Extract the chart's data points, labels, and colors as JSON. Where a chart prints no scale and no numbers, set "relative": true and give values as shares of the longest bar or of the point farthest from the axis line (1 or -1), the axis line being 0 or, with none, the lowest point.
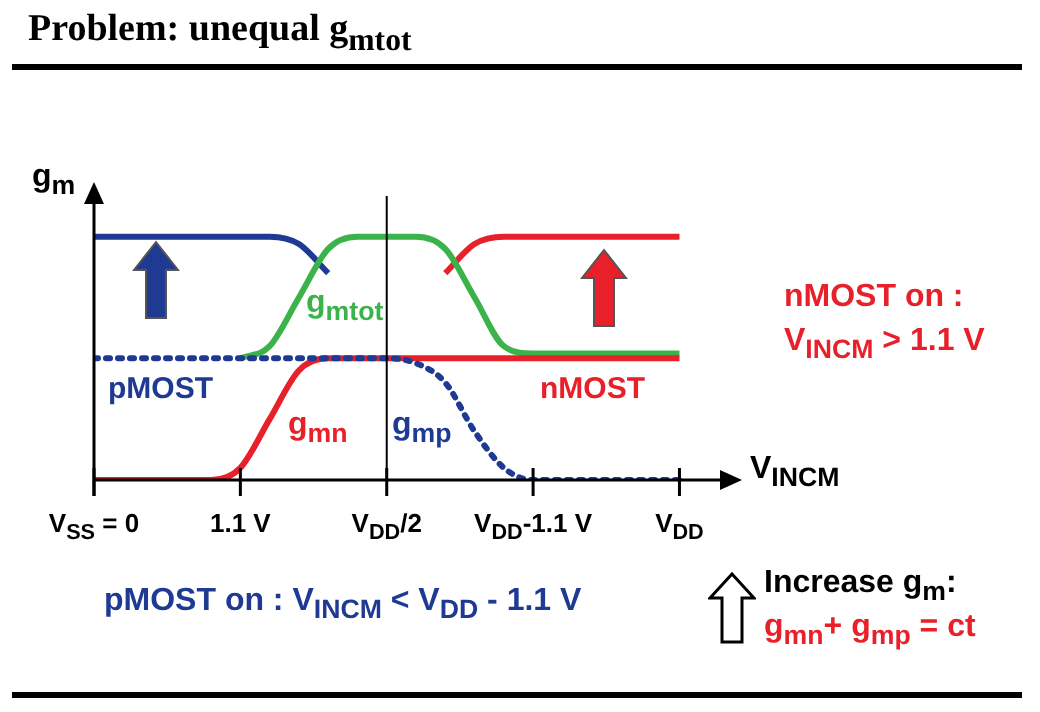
{
  "chart_data": {
    "type": "line",
    "title": "Problem: unequal g$_{mtot}$",
    "ylabel": "g$_{m}$",
    "xlabel": "V$_{INCM}$",
    "relative": true,
    "legend": false,
    "categories": [
      "V$_{SS}$ = 0",
      null,
      null,
      null,
      null,
      "1.1 V",
      null,
      null,
      null,
      null,
      "V$_{DD}$/2",
      null,
      null,
      null,
      null,
      "V$_{DD}$-1.1 V",
      null,
      null,
      null,
      null,
      "V$_{DD}$"
    ],
    "ref_lines": [
      {
        "axis": "x",
        "value": "V$_{DD}$/2",
        "color": "#000000"
      }
    ],
    "series": [
      {
        "color": "#1f3a93",
        "values": [
          1,
          1,
          1,
          1,
          1,
          1,
          1,
          0.97,
          0.85,
          null,
          null,
          null,
          null,
          null,
          null,
          null,
          null,
          null,
          null,
          null,
          null
        ]
      },
      {
        "color": "#e8202a",
        "values": [
          null,
          null,
          null,
          null,
          null,
          null,
          null,
          null,
          null,
          null,
          null,
          null,
          0.85,
          0.97,
          1,
          1,
          1,
          1,
          1,
          1,
          1
        ]
      },
      {
        "name": "g$_{mtot}$",
        "color": "#3cb34a",
        "values": [
          null,
          null,
          null,
          null,
          null,
          0.5,
          0.55,
          0.75,
          0.95,
          1,
          1,
          1,
          0.95,
          0.75,
          0.55,
          0.52,
          0.52,
          0.52,
          0.52,
          0.52,
          0.52
        ]
      },
      {
        "name": "g$_{mp}$",
        "color": "#1f3a93",
        "line_style": "dotted",
        "values": [
          0.5,
          0.5,
          0.5,
          0.5,
          0.5,
          0.5,
          0.5,
          0.5,
          0.5,
          0.5,
          0.5,
          0.48,
          0.4,
          0.2,
          0.05,
          0,
          0,
          0,
          0,
          0,
          0
        ]
      },
      {
        "name": "g$_{mn}$",
        "color": "#e8202a",
        "values": [
          0,
          0,
          0,
          0,
          0,
          0.05,
          0.25,
          0.45,
          0.5,
          0.5,
          0.5,
          0.5,
          0.5,
          0.5,
          0.5,
          0.5,
          0.5,
          0.5,
          0.5,
          0.5,
          0.5
        ]
      }
    ],
    "annotations": [
      "pMOST",
      "nMOST",
      "nMOST on :",
      "V$_{INCM}$ > 1.1 V",
      "pMOST on : V$_{INCM}$ < V$_{DD}$ - 1.1 V",
      "Increase g$_{m}$:",
      "g$_{mn}$+ g$_{mp}$ = ct"
    ]
  }
}
